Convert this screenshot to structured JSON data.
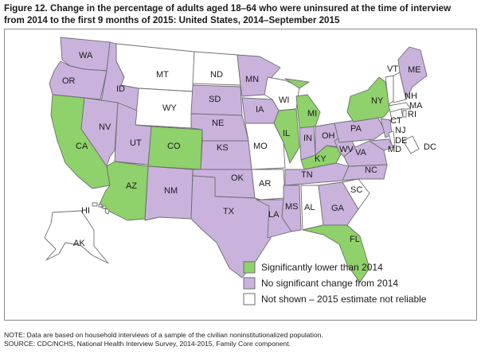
{
  "title": "Figure 12. Change in the percentage of adults aged 18–64 who were uninsured at the time of interview\nfrom 2014 to the first 9 months of 2015: United States, 2014–September 2015",
  "colors": {
    "lower": "#8fd16a",
    "no_change": "#c9b3dd",
    "not_shown": "#ffffff",
    "border": "#6e6e6e"
  },
  "legend": {
    "items": [
      {
        "key": "lower",
        "label": "Significantly lower than 2014"
      },
      {
        "key": "no_change",
        "label": "No significant change from 2014"
      },
      {
        "key": "not_shown",
        "label": "Not shown – 2015 estimate not reliable"
      }
    ]
  },
  "states": [
    {
      "abbr": "WA",
      "category": "no_change"
    },
    {
      "abbr": "OR",
      "category": "no_change"
    },
    {
      "abbr": "CA",
      "category": "lower"
    },
    {
      "abbr": "ID",
      "category": "no_change"
    },
    {
      "abbr": "NV",
      "category": "no_change"
    },
    {
      "abbr": "MT",
      "category": "not_shown"
    },
    {
      "abbr": "WY",
      "category": "not_shown"
    },
    {
      "abbr": "UT",
      "category": "no_change"
    },
    {
      "abbr": "CO",
      "category": "lower"
    },
    {
      "abbr": "AZ",
      "category": "lower"
    },
    {
      "abbr": "NM",
      "category": "no_change"
    },
    {
      "abbr": "ND",
      "category": "not_shown"
    },
    {
      "abbr": "SD",
      "category": "no_change"
    },
    {
      "abbr": "NE",
      "category": "no_change"
    },
    {
      "abbr": "KS",
      "category": "no_change"
    },
    {
      "abbr": "OK",
      "category": "no_change"
    },
    {
      "abbr": "TX",
      "category": "no_change"
    },
    {
      "abbr": "MN",
      "category": "no_change"
    },
    {
      "abbr": "IA",
      "category": "no_change"
    },
    {
      "abbr": "MO",
      "category": "not_shown"
    },
    {
      "abbr": "AR",
      "category": "not_shown"
    },
    {
      "abbr": "LA",
      "category": "no_change"
    },
    {
      "abbr": "WI",
      "category": "not_shown"
    },
    {
      "abbr": "IL",
      "category": "lower"
    },
    {
      "abbr": "MS",
      "category": "no_change"
    },
    {
      "abbr": "MI",
      "category": "lower"
    },
    {
      "abbr": "IN",
      "category": "no_change"
    },
    {
      "abbr": "KY",
      "category": "lower"
    },
    {
      "abbr": "TN",
      "category": "no_change"
    },
    {
      "abbr": "AL",
      "category": "not_shown"
    },
    {
      "abbr": "OH",
      "category": "no_change"
    },
    {
      "abbr": "WV",
      "category": "no_change"
    },
    {
      "abbr": "GA",
      "category": "no_change"
    },
    {
      "abbr": "FL",
      "category": "lower"
    },
    {
      "abbr": "SC",
      "category": "not_shown"
    },
    {
      "abbr": "NC",
      "category": "no_change"
    },
    {
      "abbr": "VA",
      "category": "no_change"
    },
    {
      "abbr": "PA",
      "category": "no_change"
    },
    {
      "abbr": "NY",
      "category": "lower"
    },
    {
      "abbr": "VT",
      "category": "not_shown"
    },
    {
      "abbr": "NH",
      "category": "not_shown"
    },
    {
      "abbr": "ME",
      "category": "no_change"
    },
    {
      "abbr": "MA",
      "category": "not_shown"
    },
    {
      "abbr": "RI",
      "category": "not_shown"
    },
    {
      "abbr": "CT",
      "category": "not_shown"
    },
    {
      "abbr": "NJ",
      "category": "no_change"
    },
    {
      "abbr": "DE",
      "category": "not_shown"
    },
    {
      "abbr": "MD",
      "category": "no_change"
    },
    {
      "abbr": "DC",
      "category": "not_shown"
    },
    {
      "abbr": "AK",
      "category": "not_shown"
    },
    {
      "abbr": "HI",
      "category": "not_shown"
    }
  ],
  "footnotes": {
    "note": "NOTE: Data are based on household interviews of a sample of the civilian noninstitutionalized population.",
    "source": "SOURCE: CDC/NCHS, National Health Interview Survey, 2014-2015, Family Core component."
  }
}
